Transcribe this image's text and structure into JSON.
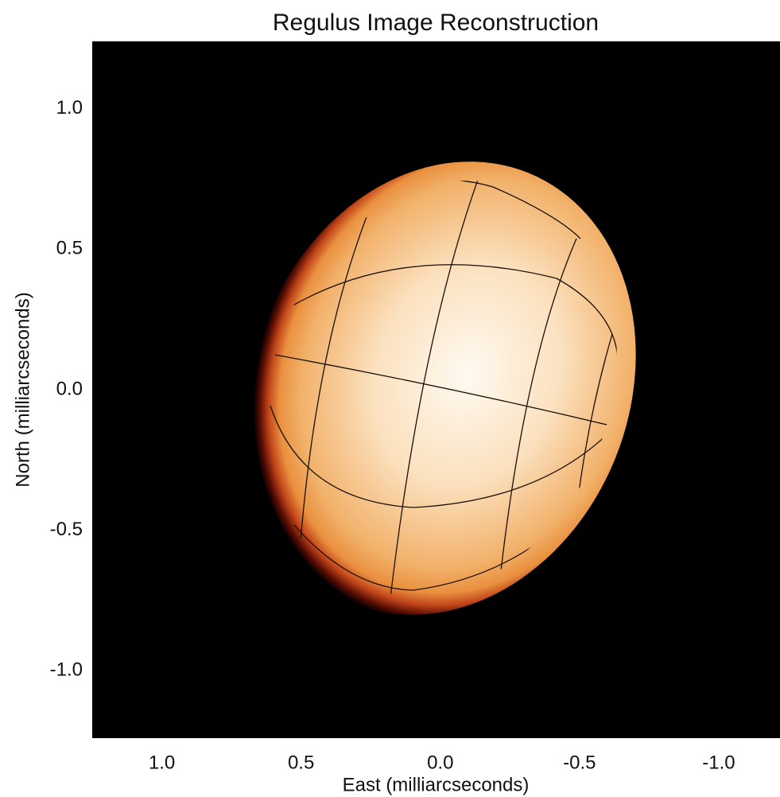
{
  "chart_data": {
    "type": "image",
    "title": "Regulus Image Reconstruction",
    "x_label": "East (milliarcseconds)",
    "y_label": "North (milliarcseconds)",
    "xlim": [
      1.25,
      -1.22
    ],
    "ylim": [
      -1.24,
      1.24
    ],
    "xticks": [
      {
        "value": 1,
        "label": "1.0"
      },
      0.5,
      {
        "value": 0,
        "label": "0.0"
      },
      -0.5,
      {
        "value": -1,
        "label": "-1.0"
      }
    ],
    "yticks": [
      {
        "value": 1,
        "label": "1.0"
      },
      0.5,
      {
        "value": 0,
        "label": "0.0"
      },
      -0.5,
      {
        "value": -1,
        "label": "-1.0"
      }
    ]
  }
}
